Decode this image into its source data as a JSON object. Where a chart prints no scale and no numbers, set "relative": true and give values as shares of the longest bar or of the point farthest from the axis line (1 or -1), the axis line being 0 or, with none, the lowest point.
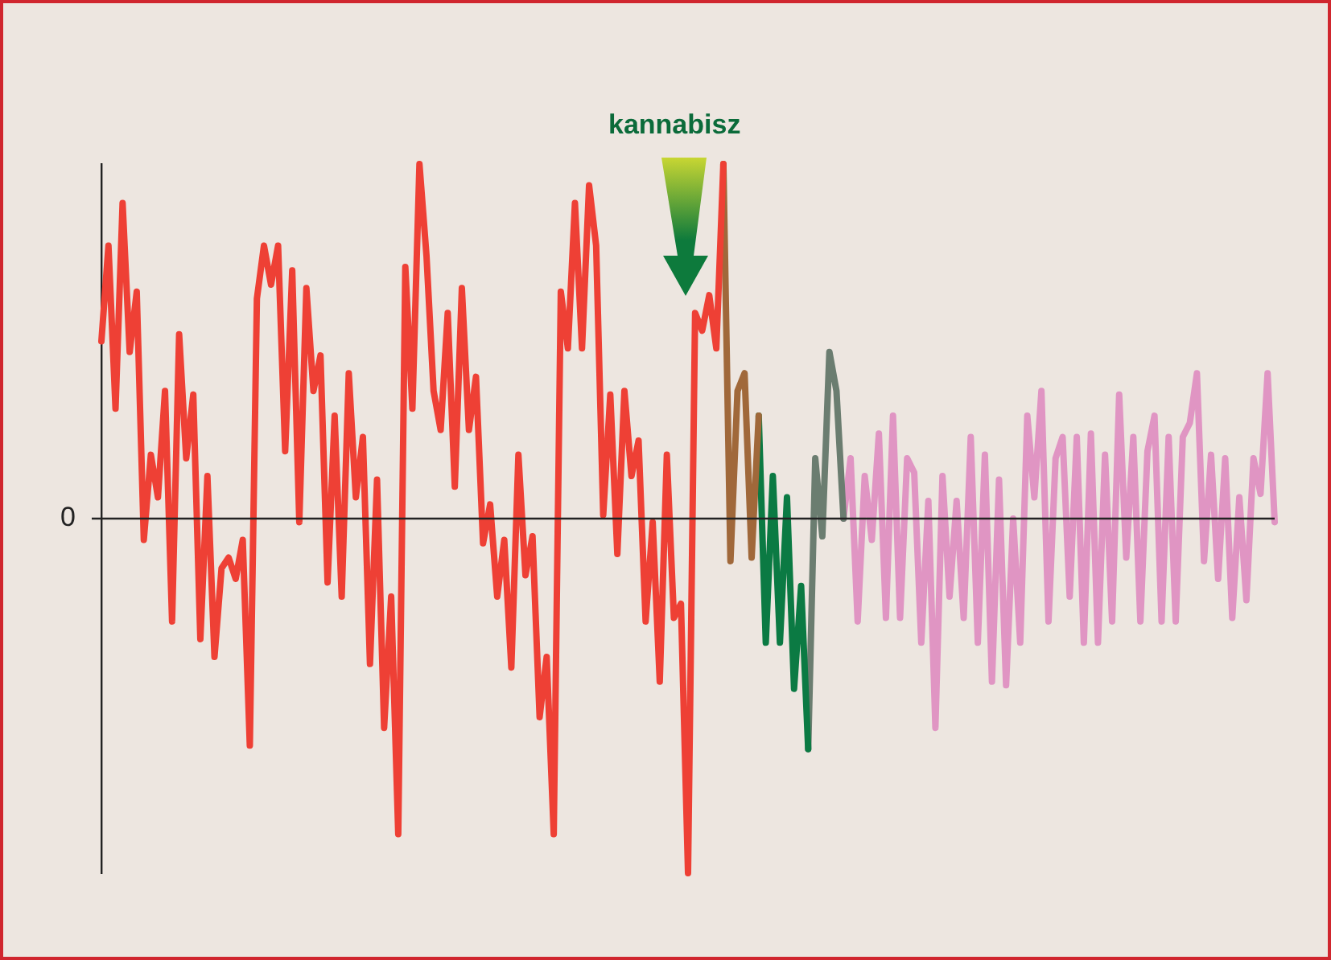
{
  "chart_data": {
    "type": "line",
    "relative": true,
    "marker": "none",
    "legend": false,
    "grid": false,
    "categories": [
      null,
      null,
      null,
      null,
      null,
      null,
      null,
      null,
      null,
      null,
      null,
      null,
      null,
      null,
      null,
      null,
      null,
      null,
      null,
      null,
      null,
      null,
      null,
      null,
      null,
      null,
      null,
      null,
      null,
      null,
      null,
      null,
      null,
      null,
      null,
      null,
      null,
      null,
      null,
      null,
      null,
      null,
      null,
      null,
      null,
      null,
      null,
      null,
      null,
      null,
      null,
      null,
      null,
      null,
      null,
      null,
      null,
      null,
      null,
      null,
      null,
      null,
      null,
      null,
      null,
      null,
      null,
      null,
      null,
      null,
      null,
      null,
      null,
      null,
      null,
      null,
      null,
      null,
      null,
      null,
      null,
      null,
      null,
      null,
      null,
      null,
      null,
      null,
      null,
      null,
      null,
      null,
      null,
      null,
      null,
      null,
      null,
      null,
      null,
      null,
      null,
      null,
      null,
      null,
      null,
      null,
      null,
      null,
      null,
      null,
      null,
      null,
      null,
      null,
      null,
      null,
      null,
      null,
      null,
      null,
      null,
      null,
      null,
      null,
      null,
      null,
      null,
      null,
      null,
      null,
      null,
      null,
      null,
      null,
      null,
      null,
      null,
      null,
      null,
      null,
      null,
      null,
      null,
      null,
      null,
      null,
      null,
      null,
      null,
      null,
      null,
      null,
      null,
      null,
      null,
      null,
      null,
      null,
      null,
      null,
      null,
      null,
      null,
      null,
      null,
      null,
      null
    ],
    "series": [
      {
        "color": "#ee4035",
        "values": [
          0.5,
          0.77,
          0.31,
          0.89,
          0.47,
          0.64,
          -0.06,
          0.18,
          0.06,
          0.36,
          -0.29,
          0.52,
          0.17,
          0.35,
          -0.34,
          0.12,
          -0.39,
          -0.14,
          -0.11,
          -0.17,
          -0.06,
          -0.64,
          0.62,
          0.77,
          0.66,
          0.77,
          0.19,
          0.7,
          -0.01,
          0.65,
          0.36,
          0.46,
          -0.18,
          0.29,
          -0.22,
          0.41,
          0.06,
          0.23,
          -0.41,
          0.11,
          -0.59,
          -0.22,
          -0.89,
          0.71,
          0.31,
          1.0,
          0.74,
          0.36,
          0.25,
          0.58,
          0.09,
          0.65,
          0.25,
          0.4,
          -0.07,
          0.04,
          -0.22,
          -0.06,
          -0.42,
          0.18,
          -0.16,
          -0.05,
          -0.56,
          -0.39,
          -0.89,
          0.64,
          0.48,
          0.89,
          0.48,
          0.94,
          0.77,
          0.01,
          0.35,
          -0.1,
          0.36,
          0.12,
          0.22,
          -0.29,
          -0.01,
          -0.46,
          0.18,
          -0.28,
          -0.24,
          -1.0,
          0.58,
          0.53,
          0.63,
          0.48,
          1.0,
          null,
          null,
          null,
          null,
          null,
          null,
          null,
          null,
          null,
          null,
          null,
          null,
          null,
          null,
          null,
          null,
          null,
          null,
          null,
          null,
          null,
          null,
          null,
          null,
          null,
          null,
          null,
          null,
          null,
          null,
          null,
          null,
          null,
          null,
          null,
          null,
          null,
          null,
          null,
          null,
          null,
          null,
          null,
          null,
          null,
          null,
          null,
          null,
          null,
          null,
          null,
          null,
          null,
          null,
          null,
          null,
          null,
          null,
          null,
          null,
          null,
          null,
          null,
          null,
          null,
          null,
          null,
          null,
          null,
          null,
          null,
          null,
          null,
          null,
          null,
          null,
          null,
          null
        ]
      },
      {
        "color": "#a0683a",
        "values": [
          null,
          null,
          null,
          null,
          null,
          null,
          null,
          null,
          null,
          null,
          null,
          null,
          null,
          null,
          null,
          null,
          null,
          null,
          null,
          null,
          null,
          null,
          null,
          null,
          null,
          null,
          null,
          null,
          null,
          null,
          null,
          null,
          null,
          null,
          null,
          null,
          null,
          null,
          null,
          null,
          null,
          null,
          null,
          null,
          null,
          null,
          null,
          null,
          null,
          null,
          null,
          null,
          null,
          null,
          null,
          null,
          null,
          null,
          null,
          null,
          null,
          null,
          null,
          null,
          null,
          null,
          null,
          null,
          null,
          null,
          null,
          null,
          null,
          null,
          null,
          null,
          null,
          null,
          null,
          null,
          null,
          null,
          null,
          null,
          null,
          null,
          null,
          null,
          1.0,
          -0.12,
          0.36,
          0.41,
          -0.11,
          0.29,
          null,
          null,
          null,
          null,
          null,
          null,
          null,
          null,
          null,
          null,
          null,
          null,
          null,
          null,
          null,
          null,
          null,
          null,
          null,
          null,
          null,
          null,
          null,
          null,
          null,
          null,
          null,
          null,
          null,
          null,
          null,
          null,
          null,
          null,
          null,
          null,
          null,
          null,
          null,
          null,
          null,
          null,
          null,
          null,
          null,
          null,
          null,
          null,
          null,
          null,
          null,
          null,
          null,
          null,
          null,
          null,
          null,
          null,
          null,
          null,
          null,
          null,
          null,
          null,
          null,
          null,
          null,
          null,
          null,
          null,
          null,
          null,
          null
        ]
      },
      {
        "color": "#0b7a43",
        "values": [
          null,
          null,
          null,
          null,
          null,
          null,
          null,
          null,
          null,
          null,
          null,
          null,
          null,
          null,
          null,
          null,
          null,
          null,
          null,
          null,
          null,
          null,
          null,
          null,
          null,
          null,
          null,
          null,
          null,
          null,
          null,
          null,
          null,
          null,
          null,
          null,
          null,
          null,
          null,
          null,
          null,
          null,
          null,
          null,
          null,
          null,
          null,
          null,
          null,
          null,
          null,
          null,
          null,
          null,
          null,
          null,
          null,
          null,
          null,
          null,
          null,
          null,
          null,
          null,
          null,
          null,
          null,
          null,
          null,
          null,
          null,
          null,
          null,
          null,
          null,
          null,
          null,
          null,
          null,
          null,
          null,
          null,
          null,
          null,
          null,
          null,
          null,
          null,
          null,
          null,
          null,
          null,
          null,
          0.29,
          -0.35,
          0.12,
          -0.35,
          0.06,
          -0.48,
          -0.19,
          -0.65,
          null,
          null,
          null,
          null,
          null,
          null,
          null,
          null,
          null,
          null,
          null,
          null,
          null,
          null,
          null,
          null,
          null,
          null,
          null,
          null,
          null,
          null,
          null,
          null,
          null,
          null,
          null,
          null,
          null,
          null,
          null,
          null,
          null,
          null,
          null,
          null,
          null,
          null,
          null,
          null,
          null,
          null,
          null,
          null,
          null,
          null,
          null,
          null,
          null,
          null,
          null,
          null,
          null,
          null,
          null,
          null,
          null,
          null,
          null,
          null,
          null,
          null,
          null,
          null,
          null,
          null
        ]
      },
      {
        "color": "#6b7d70",
        "values": [
          null,
          null,
          null,
          null,
          null,
          null,
          null,
          null,
          null,
          null,
          null,
          null,
          null,
          null,
          null,
          null,
          null,
          null,
          null,
          null,
          null,
          null,
          null,
          null,
          null,
          null,
          null,
          null,
          null,
          null,
          null,
          null,
          null,
          null,
          null,
          null,
          null,
          null,
          null,
          null,
          null,
          null,
          null,
          null,
          null,
          null,
          null,
          null,
          null,
          null,
          null,
          null,
          null,
          null,
          null,
          null,
          null,
          null,
          null,
          null,
          null,
          null,
          null,
          null,
          null,
          null,
          null,
          null,
          null,
          null,
          null,
          null,
          null,
          null,
          null,
          null,
          null,
          null,
          null,
          null,
          null,
          null,
          null,
          null,
          null,
          null,
          null,
          null,
          null,
          null,
          null,
          null,
          null,
          null,
          null,
          null,
          null,
          null,
          null,
          null,
          -0.65,
          0.17,
          -0.05,
          0.47,
          0.36,
          0,
          null,
          null,
          null,
          null,
          null,
          null,
          null,
          null,
          null,
          null,
          null,
          null,
          null,
          null,
          null,
          null,
          null,
          null,
          null,
          null,
          null,
          null,
          null,
          null,
          null,
          null,
          null,
          null,
          null,
          null,
          null,
          null,
          null,
          null,
          null,
          null,
          null,
          null,
          null,
          null,
          null,
          null,
          null,
          null,
          null,
          null,
          null,
          null,
          null,
          null,
          null,
          null,
          null,
          null,
          null,
          null,
          null,
          null,
          null,
          null,
          null
        ]
      },
      {
        "color": "#e095c3",
        "values": [
          null,
          null,
          null,
          null,
          null,
          null,
          null,
          null,
          null,
          null,
          null,
          null,
          null,
          null,
          null,
          null,
          null,
          null,
          null,
          null,
          null,
          null,
          null,
          null,
          null,
          null,
          null,
          null,
          null,
          null,
          null,
          null,
          null,
          null,
          null,
          null,
          null,
          null,
          null,
          null,
          null,
          null,
          null,
          null,
          null,
          null,
          null,
          null,
          null,
          null,
          null,
          null,
          null,
          null,
          null,
          null,
          null,
          null,
          null,
          null,
          null,
          null,
          null,
          null,
          null,
          null,
          null,
          null,
          null,
          null,
          null,
          null,
          null,
          null,
          null,
          null,
          null,
          null,
          null,
          null,
          null,
          null,
          null,
          null,
          null,
          null,
          null,
          null,
          null,
          null,
          null,
          null,
          null,
          null,
          null,
          null,
          null,
          null,
          null,
          null,
          null,
          null,
          null,
          null,
          null,
          0,
          0.17,
          -0.29,
          0.12,
          -0.06,
          0.24,
          -0.28,
          0.29,
          -0.28,
          0.17,
          0.13,
          -0.35,
          0.05,
          -0.59,
          0.12,
          -0.22,
          0.05,
          -0.28,
          0.23,
          -0.35,
          0.18,
          -0.46,
          0.11,
          -0.47,
          0,
          -0.35,
          0.29,
          0.06,
          0.36,
          -0.29,
          0.17,
          0.23,
          -0.22,
          0.23,
          -0.35,
          0.24,
          -0.35,
          0.18,
          -0.29,
          0.35,
          -0.11,
          0.23,
          -0.29,
          0.19,
          0.29,
          -0.29,
          0.23,
          -0.29,
          0.23,
          0.27,
          0.41,
          -0.12,
          0.18,
          -0.17,
          0.17,
          -0.28,
          0.06,
          -0.23,
          0.17,
          0.07,
          0.41,
          -0.01
        ]
      }
    ],
    "ref_lines": [
      {
        "axis": "y",
        "value": 0,
        "label": "0",
        "color": "#222222"
      }
    ],
    "annotations": [
      "kannabisz"
    ]
  }
}
